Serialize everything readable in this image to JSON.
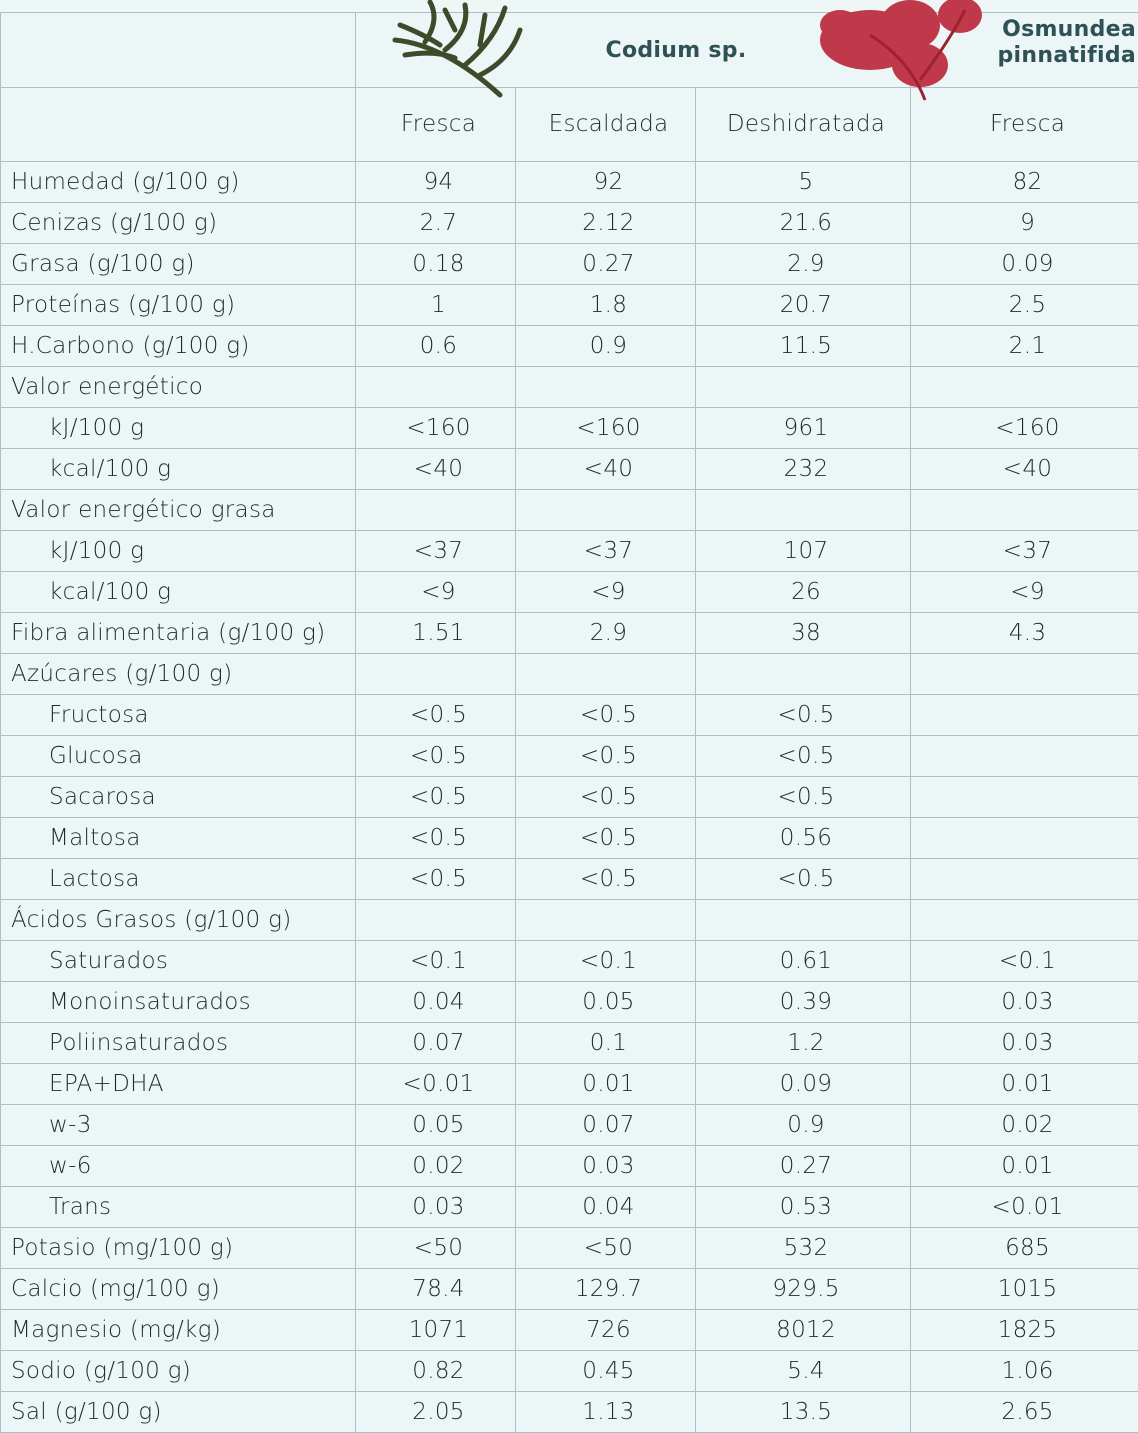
{
  "table": {
    "species": [
      "Codium sp.",
      "Osmundea pinnatifida"
    ],
    "columns": [
      "Fresca",
      "Escaldada",
      "Deshidratada",
      "Fresca"
    ],
    "rows": [
      {
        "label": "Humedad (g/100 g)",
        "values": [
          "94",
          "92",
          "5",
          "82"
        ]
      },
      {
        "label": "Cenizas (g/100 g)",
        "values": [
          "2.7",
          "2.12",
          "21.6",
          "9"
        ]
      },
      {
        "label": "Grasa (g/100 g)",
        "values": [
          "0.18",
          "0.27",
          "2.9",
          "0.09"
        ]
      },
      {
        "label": "Proteínas (g/100 g)",
        "values": [
          "1",
          "1.8",
          "20.7",
          "2.5"
        ]
      },
      {
        "label": "H.Carbono (g/100 g)",
        "values": [
          "0.6",
          "0.9",
          "11.5",
          "2.1"
        ]
      },
      {
        "label": "Valor energético",
        "items": [
          {
            "label": "kJ/100 g",
            "values": [
              "<160",
              "<160",
              "961",
              "<160"
            ]
          },
          {
            "label": "kcal/100 g",
            "values": [
              "<40",
              "<40",
              "232",
              "<40"
            ]
          }
        ]
      },
      {
        "label": "Valor energético grasa",
        "items": [
          {
            "label": "kJ/100 g",
            "values": [
              "<37",
              "<37",
              "107",
              "<37"
            ]
          },
          {
            "label": "kcal/100 g",
            "values": [
              "<9",
              "<9",
              "26",
              "<9"
            ]
          }
        ]
      },
      {
        "label": "Fibra alimentaria (g/100 g)",
        "values": [
          "1.51",
          "2.9",
          "38",
          "4.3"
        ]
      },
      {
        "label": "Azúcares (g/100 g)",
        "items": [
          {
            "label": "Fructosa",
            "values": [
              "<0.5",
              "<0.5",
              "<0.5",
              null
            ]
          },
          {
            "label": "Glucosa",
            "values": [
              "<0.5",
              "<0.5",
              "<0.5",
              null
            ]
          },
          {
            "label": "Sacarosa",
            "values": [
              "<0.5",
              "<0.5",
              "<0.5",
              null
            ]
          },
          {
            "label": "Maltosa",
            "values": [
              "<0.5",
              "<0.5",
              "0.56",
              null
            ]
          },
          {
            "label": "Lactosa",
            "values": [
              "<0.5",
              "<0.5",
              "<0.5",
              null
            ]
          }
        ]
      },
      {
        "label": "Ácidos Grasos (g/100 g)",
        "items": [
          {
            "label": "Saturados",
            "values": [
              "<0.1",
              "<0.1",
              "0.61",
              "<0.1"
            ]
          },
          {
            "label": "Monoinsaturados",
            "values": [
              "0.04",
              "0.05",
              "0.39",
              "0.03"
            ]
          },
          {
            "label": "Poliinsaturados",
            "values": [
              "0.07",
              "0.1",
              "1.2",
              "0.03"
            ]
          },
          {
            "label": "EPA+DHA",
            "values": [
              "<0.01",
              "0.01",
              "0.09",
              "0.01"
            ]
          },
          {
            "label": "w-3",
            "values": [
              "0.05",
              "0.07",
              "0.9",
              "0.02"
            ]
          },
          {
            "label": "w-6",
            "values": [
              "0.02",
              "0.03",
              "0.27",
              "0.01"
            ]
          },
          {
            "label": "Trans",
            "values": [
              "0.03",
              "0.04",
              "0.53",
              "<0.01"
            ]
          }
        ]
      },
      {
        "label": "Potasio (mg/100 g)",
        "values": [
          "<50",
          "<50",
          "532",
          "685"
        ]
      },
      {
        "label": "Calcio (mg/100 g)",
        "values": [
          "78.4",
          "129.7",
          "929.5",
          "1015"
        ]
      },
      {
        "label": "Magnesio (mg/kg)",
        "values": [
          "1071",
          "726",
          "8012",
          "1825"
        ]
      },
      {
        "label": "Sodio (g/100 g)",
        "values": [
          "0.82",
          "0.45",
          "5.4",
          "1.06"
        ]
      },
      {
        "label": "Sal (g/100 g)",
        "values": [
          "2.05",
          "1.13",
          "13.5",
          "2.65"
        ]
      }
    ]
  }
}
